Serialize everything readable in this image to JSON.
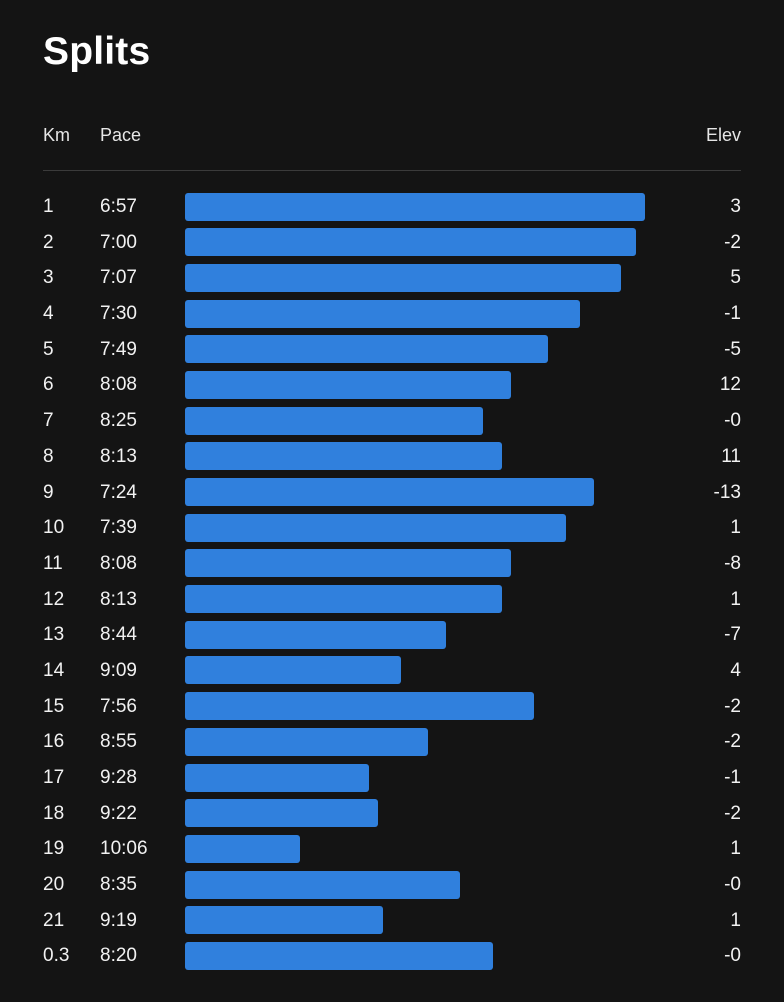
{
  "title": "Splits",
  "columns": {
    "km": "Km",
    "pace": "Pace",
    "elev": "Elev"
  },
  "accent_color": "#3080dd",
  "splits": [
    {
      "km": "1",
      "pace": "6:57",
      "elev": "3",
      "bar": 1.0
    },
    {
      "km": "2",
      "pace": "7:00",
      "elev": "-2",
      "bar": 0.98
    },
    {
      "km": "3",
      "pace": "7:07",
      "elev": "5",
      "bar": 0.948
    },
    {
      "km": "4",
      "pace": "7:30",
      "elev": "-1",
      "bar": 0.859
    },
    {
      "km": "5",
      "pace": "7:49",
      "elev": "-5",
      "bar": 0.789
    },
    {
      "km": "6",
      "pace": "8:08",
      "elev": "12",
      "bar": 0.709
    },
    {
      "km": "7",
      "pace": "8:25",
      "elev": "-0",
      "bar": 0.648
    },
    {
      "km": "8",
      "pace": "8:13",
      "elev": "11",
      "bar": 0.689
    },
    {
      "km": "9",
      "pace": "7:24",
      "elev": "-13",
      "bar": 0.889
    },
    {
      "km": "10",
      "pace": "7:39",
      "elev": "1",
      "bar": 0.828
    },
    {
      "km": "11",
      "pace": "8:08",
      "elev": "-8",
      "bar": 0.709
    },
    {
      "km": "12",
      "pace": "8:13",
      "elev": "1",
      "bar": 0.689
    },
    {
      "km": "13",
      "pace": "8:44",
      "elev": "-7",
      "bar": 0.568
    },
    {
      "km": "14",
      "pace": "9:09",
      "elev": "4",
      "bar": 0.469
    },
    {
      "km": "15",
      "pace": "7:56",
      "elev": "-2",
      "bar": 0.759
    },
    {
      "km": "16",
      "pace": "8:55",
      "elev": "-2",
      "bar": 0.529
    },
    {
      "km": "17",
      "pace": "9:28",
      "elev": "-1",
      "bar": 0.4
    },
    {
      "km": "18",
      "pace": "9:22",
      "elev": "-2",
      "bar": 0.419
    },
    {
      "km": "19",
      "pace": "10:06",
      "elev": "1",
      "bar": 0.25
    },
    {
      "km": "20",
      "pace": "8:35",
      "elev": "-0",
      "bar": 0.598
    },
    {
      "km": "21",
      "pace": "9:19",
      "elev": "1",
      "bar": 0.43
    },
    {
      "km": "0.3",
      "pace": "8:20",
      "elev": "-0",
      "bar": 0.67
    }
  ]
}
